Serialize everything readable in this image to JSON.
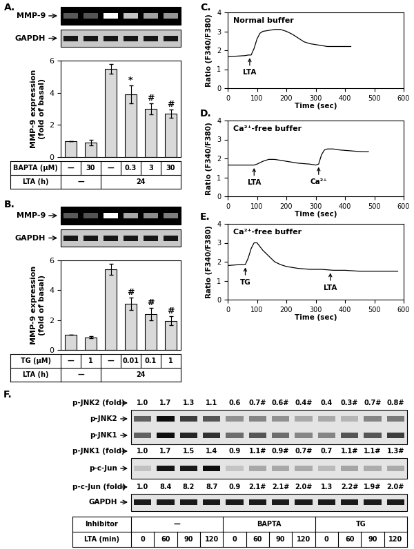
{
  "chart_data": [
    {
      "type": "bar",
      "panel": "A.",
      "values": [
        1.0,
        0.9,
        5.5,
        3.9,
        3.0,
        2.7
      ],
      "errors": [
        0,
        0.18,
        0.3,
        0.55,
        0.35,
        0.25
      ],
      "marks": [
        null,
        null,
        null,
        "*",
        "#",
        "#"
      ],
      "color": "#d9d9d9",
      "ylabel": "MMP-9 expression\n(fold of basal)",
      "ylim": [
        0,
        6
      ],
      "yticks": [
        0,
        2,
        4,
        6
      ],
      "tick_labels": "y",
      "gel": {
        "rows": [
          "MMP-9",
          "GAPDH"
        ]
      },
      "table": {
        "rows": [
          {
            "label": "BAPTA (μM)",
            "cells": [
              {
                "text": "—",
                "span": 1
              },
              {
                "text": "30",
                "span": 1
              },
              {
                "text": "—",
                "span": 1
              },
              {
                "text": "0.3",
                "span": 1
              },
              {
                "text": "3",
                "span": 1
              },
              {
                "text": "30",
                "span": 1
              }
            ]
          },
          {
            "label": "LTA (h)",
            "cells": [
              {
                "text": "—",
                "span": 2
              },
              {
                "text": "24",
                "span": 4
              }
            ]
          }
        ]
      }
    },
    {
      "type": "bar",
      "panel": "B.",
      "values": [
        1.0,
        0.85,
        5.4,
        3.1,
        2.4,
        1.95
      ],
      "errors": [
        0,
        0.08,
        0.35,
        0.4,
        0.4,
        0.3
      ],
      "marks": [
        null,
        null,
        null,
        "#",
        "#",
        "#"
      ],
      "color": "#d9d9d9",
      "ylabel": "MMP-9 expression\n(fold of basal)",
      "ylim": [
        0,
        6
      ],
      "yticks": [
        0,
        2,
        4,
        6
      ],
      "tick_labels": "y",
      "gel": {
        "rows": [
          "MMP-9",
          "GAPDH"
        ]
      },
      "table": {
        "rows": [
          {
            "label": "TG (μM)",
            "cells": [
              {
                "text": "—",
                "span": 1
              },
              {
                "text": "1",
                "span": 1
              },
              {
                "text": "—",
                "span": 1
              },
              {
                "text": "0.01",
                "span": 1
              },
              {
                "text": "0.1",
                "span": 1
              },
              {
                "text": "1",
                "span": 1
              }
            ]
          },
          {
            "label": "LTA (h)",
            "cells": [
              {
                "text": "—",
                "span": 2
              },
              {
                "text": "24",
                "span": 4
              }
            ]
          }
        ]
      }
    },
    {
      "type": "line",
      "panel": "C.",
      "title": "Normal buffer",
      "color": "#000000",
      "x": [
        0,
        20,
        40,
        60,
        70,
        80,
        90,
        100,
        110,
        120,
        140,
        160,
        180,
        200,
        220,
        240,
        260,
        280,
        300,
        320,
        340,
        360,
        380,
        400,
        420
      ],
      "values": [
        1.65,
        1.68,
        1.7,
        1.72,
        1.75,
        1.75,
        2.1,
        2.6,
        2.9,
        3.0,
        3.05,
        3.1,
        3.1,
        3.0,
        2.85,
        2.65,
        2.45,
        2.35,
        2.3,
        2.25,
        2.2,
        2.2,
        2.2,
        2.2,
        2.2
      ],
      "xlim": [
        0,
        600
      ],
      "xticks": [
        0,
        100,
        200,
        300,
        400,
        500,
        600
      ],
      "ylim": [
        0,
        4
      ],
      "yticks": [
        0,
        1,
        2,
        3,
        4
      ],
      "xlabel": "Time (sec)",
      "ylabel": "Ratio (F340/F380)",
      "annotations": [
        {
          "text": "LTA",
          "x": 75
        }
      ]
    },
    {
      "type": "line",
      "panel": "D.",
      "title": "Ca²⁺-free buffer",
      "color": "#000000",
      "x": [
        0,
        50,
        90,
        100,
        120,
        140,
        160,
        180,
        200,
        240,
        280,
        300,
        310,
        320,
        330,
        340,
        360,
        380,
        420,
        460,
        480
      ],
      "values": [
        1.65,
        1.65,
        1.65,
        1.7,
        1.85,
        1.95,
        1.95,
        1.9,
        1.85,
        1.75,
        1.7,
        1.65,
        1.7,
        2.2,
        2.45,
        2.5,
        2.5,
        2.45,
        2.4,
        2.35,
        2.35
      ],
      "xlim": [
        0,
        600
      ],
      "xticks": [
        0,
        100,
        200,
        300,
        400,
        500,
        600
      ],
      "ylim": [
        0,
        4
      ],
      "yticks": [
        0,
        1,
        2,
        3,
        4
      ],
      "xlabel": "Time (sec)",
      "ylabel": "Ratio (F340/F380)",
      "annotations": [
        {
          "text": "LTA",
          "x": 90
        },
        {
          "text": "Ca²⁺",
          "x": 310
        }
      ]
    },
    {
      "type": "line",
      "panel": "E.",
      "title": "Ca²⁺-free buffer",
      "color": "#000000",
      "x": [
        0,
        40,
        60,
        70,
        80,
        90,
        100,
        110,
        120,
        140,
        160,
        180,
        200,
        240,
        280,
        320,
        360,
        400,
        450,
        500,
        580
      ],
      "values": [
        1.8,
        1.85,
        1.85,
        2.2,
        2.7,
        3.0,
        3.0,
        2.8,
        2.6,
        2.3,
        2.0,
        1.85,
        1.75,
        1.65,
        1.6,
        1.6,
        1.55,
        1.55,
        1.5,
        1.5,
        1.5
      ],
      "xlim": [
        0,
        600
      ],
      "xticks": [
        0,
        100,
        200,
        300,
        400,
        500,
        600
      ],
      "ylim": [
        0,
        4
      ],
      "yticks": [
        0,
        1,
        2,
        3,
        4
      ],
      "xlabel": "Time (sec)",
      "ylabel": "Ratio (F340/F380)",
      "annotations": [
        {
          "text": "TG",
          "x": 60
        },
        {
          "text": "LTA",
          "x": 350
        }
      ]
    }
  ],
  "blot": {
    "panel": "F.",
    "rows": [
      {
        "label": "p-JNK2 (fold)",
        "values": [
          1.0,
          1.7,
          1.3,
          1.1,
          0.6,
          0.7,
          0.6,
          0.4,
          0.4,
          0.3,
          0.7,
          0.8
        ],
        "value_labels": [
          "1.0",
          "1.7",
          "1.3",
          "1.1",
          "0.6",
          "0.7#",
          "0.6#",
          "0.4#",
          "0.4",
          "0.3#",
          "0.7#",
          "0.8#"
        ]
      },
      {
        "label": "p-JNK1 (fold)",
        "values": [
          1.0,
          1.7,
          1.5,
          1.4,
          0.9,
          1.1,
          0.9,
          0.7,
          0.7,
          1.1,
          1.1,
          1.3
        ],
        "value_labels": [
          "1.0",
          "1.7",
          "1.5",
          "1.4",
          "0.9",
          "1.1#",
          "0.9#",
          "0.7#",
          "0.7",
          "1.1#",
          "1.1#",
          "1.3#"
        ]
      },
      {
        "label": "p-c-Jun (fold)",
        "values": [
          1.0,
          8.4,
          8.2,
          8.7,
          0.9,
          2.1,
          2.1,
          2.0,
          1.3,
          2.2,
          1.9,
          2.0
        ],
        "value_labels": [
          "1.0",
          "8.4",
          "8.2",
          "8.7",
          "0.9",
          "2.1#",
          "2.1#",
          "2.0#",
          "1.3",
          "2.2#",
          "1.9#",
          "2.0#"
        ]
      }
    ],
    "bands": [
      "p-JNK2",
      "p-JNK1",
      "p-c-Jun",
      "GAPDH"
    ],
    "table": {
      "rows": [
        {
          "label": "Inhibitor",
          "cells": [
            {
              "text": "—",
              "span": 4
            },
            {
              "text": "BAPTA",
              "span": 4
            },
            {
              "text": "TG",
              "span": 4
            }
          ]
        },
        {
          "label": "LTA (min)",
          "cells": [
            {
              "text": "0",
              "span": 1
            },
            {
              "text": "60",
              "span": 1
            },
            {
              "text": "90",
              "span": 1
            },
            {
              "text": "120",
              "span": 1
            },
            {
              "text": "0",
              "span": 1
            },
            {
              "text": "60",
              "span": 1
            },
            {
              "text": "90",
              "span": 1
            },
            {
              "text": "120",
              "span": 1
            },
            {
              "text": "0",
              "span": 1
            },
            {
              "text": "60",
              "span": 1
            },
            {
              "text": "90",
              "span": 1
            },
            {
              "text": "120",
              "span": 1
            }
          ]
        }
      ]
    }
  }
}
